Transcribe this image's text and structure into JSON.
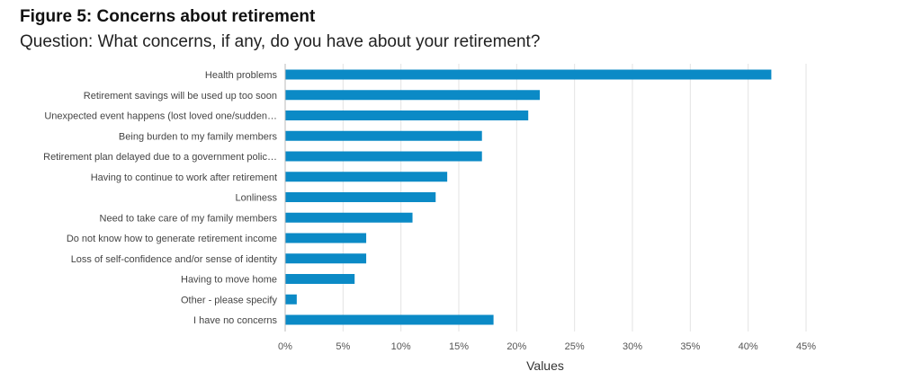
{
  "header": {
    "title": "Figure 5: Concerns about retirement",
    "subtitle": "Question: What concerns, if any, do you have about your retirement?"
  },
  "chart_data": {
    "type": "bar",
    "orientation": "horizontal",
    "categories": [
      "Health problems",
      "Retirement savings will be used up too soon",
      "Unexpected event happens (lost loved one/sudden…",
      "Being burden to my family members",
      "Retirement plan delayed due to a government polic…",
      "Having to continue to work after retirement",
      "Lonliness",
      "Need to take care of my family members",
      "Do not know how to generate retirement income",
      "Loss of self-confidence and/or sense of identity",
      "Having to move home",
      "Other - please specify",
      "I have no concerns"
    ],
    "values": [
      42,
      22,
      21,
      17,
      17,
      14,
      13,
      11,
      7,
      7,
      6,
      1,
      18
    ],
    "xlim": [
      0,
      45
    ],
    "xticks": [
      0,
      5,
      10,
      15,
      20,
      25,
      30,
      35,
      40,
      45
    ],
    "xtick_labels": [
      "0%",
      "5%",
      "10%",
      "15%",
      "20%",
      "25%",
      "30%",
      "35%",
      "40%",
      "45%"
    ],
    "xlabel": "Values",
    "ylabel": "",
    "grid": true,
    "bar_color": "#0b8ac6",
    "grid_color": "#e3e3e3"
  }
}
